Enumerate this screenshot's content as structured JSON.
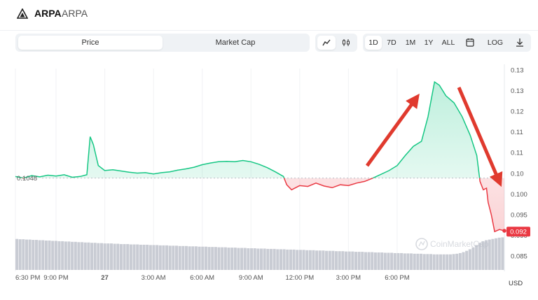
{
  "header": {
    "name": "ARPA",
    "symbol": "ARPA"
  },
  "tabs": [
    {
      "label": "Price",
      "active": true
    },
    {
      "label": "Market Cap",
      "active": false
    }
  ],
  "chart_mode_icons": [
    "line-chart-icon",
    "candlestick-icon"
  ],
  "ranges": [
    "1D",
    "7D",
    "1M",
    "1Y",
    "ALL"
  ],
  "active_range": "1D",
  "calendar_icon": "calendar-icon",
  "log_label": "LOG",
  "download_icon": "download-icon",
  "colors": {
    "up": "#16c784",
    "down": "#ea3943",
    "arrow": "#e03a2e",
    "volume": "#c9ccd4"
  },
  "chart_data": {
    "type": "line",
    "reference_label": "0.1048",
    "reference_value": 0.1048,
    "current_label": "0.092",
    "current_value": 0.092,
    "currency": "USD",
    "watermark": "CoinMarketCap",
    "y_tick_labels": [
      "0.13",
      "0.13",
      "0.12",
      "0.11",
      "0.11",
      "0.10",
      "0.100",
      "0.095",
      "0.090",
      "0.085"
    ],
    "x_tick_labels": [
      "6:30 PM",
      "9:00 PM",
      "27",
      "3:00 AM",
      "6:00 AM",
      "9:00 AM",
      "12:00 PM",
      "3:00 PM",
      "6:00 PM"
    ],
    "ylim": [
      0.0825,
      0.131
    ],
    "series": [
      {
        "points": [
          [
            18.5,
            0.1052
          ],
          [
            19.0,
            0.1048
          ],
          [
            19.5,
            0.1054
          ],
          [
            20.0,
            0.1051
          ],
          [
            20.5,
            0.1055
          ],
          [
            21.0,
            0.1053
          ],
          [
            21.5,
            0.1056
          ],
          [
            22.0,
            0.105
          ],
          [
            22.5,
            0.1052
          ],
          [
            22.9,
            0.1056
          ],
          [
            23.1,
            0.1147
          ],
          [
            23.3,
            0.1128
          ],
          [
            23.6,
            0.1078
          ],
          [
            24.0,
            0.1066
          ],
          [
            24.5,
            0.1068
          ],
          [
            25.0,
            0.1065
          ],
          [
            25.5,
            0.1062
          ],
          [
            26.0,
            0.106
          ],
          [
            26.5,
            0.1061
          ],
          [
            27.0,
            0.1058
          ],
          [
            27.5,
            0.1061
          ],
          [
            28.0,
            0.1063
          ],
          [
            28.5,
            0.1067
          ],
          [
            29.0,
            0.107
          ],
          [
            29.5,
            0.1074
          ],
          [
            30.0,
            0.108
          ],
          [
            30.5,
            0.1084
          ],
          [
            31.0,
            0.1087
          ],
          [
            31.5,
            0.1088
          ],
          [
            32.0,
            0.1087
          ],
          [
            32.5,
            0.109
          ],
          [
            33.0,
            0.1087
          ],
          [
            33.5,
            0.1081
          ],
          [
            34.0,
            0.1073
          ],
          [
            34.5,
            0.1063
          ],
          [
            35.0,
            0.1052
          ],
          [
            35.2,
            0.1032
          ],
          [
            35.5,
            0.102
          ],
          [
            36.0,
            0.103
          ],
          [
            36.5,
            0.1028
          ],
          [
            37.0,
            0.1036
          ],
          [
            37.5,
            0.1029
          ],
          [
            38.0,
            0.1025
          ],
          [
            38.5,
            0.1032
          ],
          [
            39.0,
            0.103
          ],
          [
            39.5,
            0.1036
          ],
          [
            40.0,
            0.104
          ],
          [
            40.5,
            0.1048
          ],
          [
            41.0,
            0.1057
          ],
          [
            41.5,
            0.1066
          ],
          [
            42.0,
            0.1078
          ],
          [
            42.5,
            0.1102
          ],
          [
            43.0,
            0.1124
          ],
          [
            43.5,
            0.1136
          ],
          [
            43.9,
            0.1195
          ],
          [
            44.3,
            0.1278
          ],
          [
            44.6,
            0.127
          ],
          [
            45.0,
            0.1245
          ],
          [
            45.5,
            0.1228
          ],
          [
            46.0,
            0.1195
          ],
          [
            46.5,
            0.115
          ],
          [
            46.9,
            0.1102
          ],
          [
            47.1,
            0.104
          ],
          [
            47.3,
            0.102
          ],
          [
            47.5,
            0.1024
          ],
          [
            47.6,
            0.099
          ],
          [
            47.8,
            0.096
          ],
          [
            48.0,
            0.092
          ],
          [
            48.3,
            0.0925
          ],
          [
            48.6,
            0.0922
          ]
        ]
      }
    ],
    "volume": [
      0.92,
      0.91,
      0.91,
      0.9,
      0.9,
      0.89,
      0.89,
      0.88,
      0.88,
      0.87,
      0.87,
      0.86,
      0.86,
      0.85,
      0.85,
      0.84,
      0.84,
      0.83,
      0.83,
      0.82,
      0.82,
      0.81,
      0.81,
      0.8,
      0.8,
      0.79,
      0.79,
      0.78,
      0.78,
      0.78,
      0.77,
      0.77,
      0.76,
      0.76,
      0.76,
      0.75,
      0.75,
      0.75,
      0.74,
      0.74,
      0.74,
      0.73,
      0.73,
      0.73,
      0.72,
      0.72,
      0.72,
      0.71,
      0.71,
      0.71,
      0.7,
      0.7,
      0.7,
      0.69,
      0.69,
      0.69,
      0.68,
      0.68,
      0.68,
      0.67,
      0.67,
      0.67,
      0.66,
      0.66,
      0.66,
      0.65,
      0.65,
      0.65,
      0.64,
      0.64,
      0.64,
      0.63,
      0.63,
      0.63,
      0.62,
      0.62,
      0.62,
      0.61,
      0.61,
      0.61,
      0.6,
      0.6,
      0.6,
      0.59,
      0.59,
      0.59,
      0.58,
      0.58,
      0.58,
      0.57,
      0.57,
      0.57,
      0.56,
      0.56,
      0.56,
      0.55,
      0.55,
      0.55,
      0.54,
      0.54,
      0.54,
      0.53,
      0.53,
      0.53,
      0.52,
      0.52,
      0.52,
      0.51,
      0.51,
      0.51,
      0.5,
      0.5,
      0.5,
      0.49,
      0.49,
      0.49,
      0.48,
      0.48,
      0.48,
      0.47,
      0.47,
      0.47,
      0.46,
      0.46,
      0.46,
      0.45,
      0.45,
      0.45,
      0.44,
      0.44,
      0.44,
      0.44,
      0.44,
      0.44,
      0.45,
      0.46,
      0.48,
      0.51,
      0.55,
      0.6,
      0.66,
      0.73,
      0.8,
      0.85,
      0.88,
      0.9,
      0.92,
      0.94,
      0.96,
      0.97
    ]
  }
}
